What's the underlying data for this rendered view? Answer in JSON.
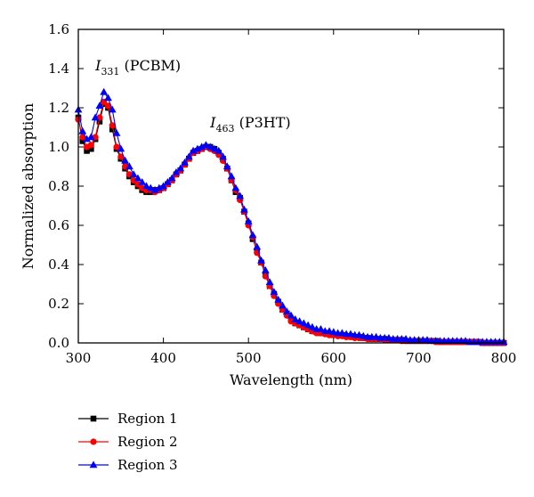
{
  "chart_data": {
    "type": "line",
    "xlabel": "Wavelength (nm)",
    "ylabel": "Normalized absorption",
    "xlim": [
      300,
      800
    ],
    "ylim": [
      0,
      1.6
    ],
    "x_ticks": [
      300,
      400,
      500,
      600,
      700,
      800
    ],
    "y_ticks": [
      0.0,
      0.2,
      0.4,
      0.6,
      0.8,
      1.0,
      1.2,
      1.4,
      1.6
    ],
    "x_tick_labels": [
      "300",
      "400",
      "500",
      "600",
      "700",
      "800"
    ],
    "y_tick_labels": [
      "0.0",
      "0.2",
      "0.4",
      "0.6",
      "0.8",
      "1.0",
      "1.2",
      "1.4",
      "1.6"
    ],
    "grid": false,
    "legend_position": "below-left",
    "annotations": [
      {
        "main": "I",
        "sub": "331",
        "rest": " (PCBM)",
        "x": 320,
        "y": 1.39
      },
      {
        "main": "I",
        "sub": "463",
        "rest": " (P3HT)",
        "x": 455,
        "y": 1.1
      }
    ],
    "x": [
      300,
      305,
      310,
      315,
      320,
      325,
      330,
      335,
      340,
      345,
      350,
      355,
      360,
      365,
      370,
      375,
      380,
      385,
      390,
      395,
      400,
      405,
      410,
      415,
      420,
      425,
      430,
      435,
      440,
      445,
      450,
      455,
      460,
      465,
      470,
      475,
      480,
      485,
      490,
      495,
      500,
      505,
      510,
      515,
      520,
      525,
      530,
      535,
      540,
      545,
      550,
      555,
      560,
      565,
      570,
      575,
      580,
      585,
      590,
      595,
      600,
      605,
      610,
      615,
      620,
      625,
      630,
      635,
      640,
      645,
      650,
      655,
      660,
      665,
      670,
      675,
      680,
      685,
      690,
      695,
      700,
      705,
      710,
      715,
      720,
      725,
      730,
      735,
      740,
      745,
      750,
      755,
      760,
      765,
      770,
      775,
      780,
      785,
      790,
      795,
      800
    ],
    "series": [
      {
        "name": "Region 1",
        "color": "#000000",
        "marker": "square",
        "values": [
          1.15,
          1.03,
          0.98,
          0.99,
          1.04,
          1.13,
          1.22,
          1.2,
          1.09,
          0.99,
          0.94,
          0.89,
          0.85,
          0.82,
          0.8,
          0.78,
          0.77,
          0.77,
          0.78,
          0.78,
          0.79,
          0.81,
          0.83,
          0.86,
          0.88,
          0.91,
          0.94,
          0.97,
          0.98,
          0.99,
          1.0,
          1.0,
          0.99,
          0.97,
          0.94,
          0.89,
          0.83,
          0.77,
          0.74,
          0.67,
          0.61,
          0.53,
          0.47,
          0.41,
          0.35,
          0.29,
          0.25,
          0.21,
          0.17,
          0.15,
          0.12,
          0.1,
          0.09,
          0.08,
          0.07,
          0.06,
          0.055,
          0.05,
          0.05,
          0.045,
          0.04,
          0.04,
          0.04,
          0.035,
          0.035,
          0.03,
          0.03,
          0.025,
          0.025,
          0.02,
          0.02,
          0.02,
          0.02,
          0.015,
          0.015,
          0.015,
          0.015,
          0.01,
          0.01,
          0.01,
          0.01,
          0.01,
          0.01,
          0.01,
          0.01,
          0.005,
          0.005,
          0.005,
          0.005,
          0.005,
          0.005,
          0.005,
          0.005,
          0.005,
          0.005,
          0.0,
          0.0,
          0.0,
          0.0,
          0.0,
          0.0
        ]
      },
      {
        "name": "Region 2",
        "color": "#ff0000",
        "marker": "circle",
        "values": [
          1.14,
          1.05,
          1.0,
          1.01,
          1.05,
          1.15,
          1.23,
          1.21,
          1.11,
          1.0,
          0.95,
          0.9,
          0.86,
          0.83,
          0.81,
          0.79,
          0.78,
          0.78,
          0.77,
          0.78,
          0.79,
          0.81,
          0.83,
          0.86,
          0.88,
          0.91,
          0.94,
          0.97,
          0.98,
          0.99,
          1.0,
          0.99,
          0.98,
          0.96,
          0.93,
          0.89,
          0.83,
          0.78,
          0.73,
          0.67,
          0.6,
          0.54,
          0.46,
          0.41,
          0.34,
          0.29,
          0.24,
          0.2,
          0.17,
          0.14,
          0.11,
          0.1,
          0.09,
          0.08,
          0.07,
          0.06,
          0.05,
          0.05,
          0.045,
          0.04,
          0.04,
          0.035,
          0.035,
          0.03,
          0.03,
          0.025,
          0.025,
          0.025,
          0.02,
          0.02,
          0.02,
          0.02,
          0.015,
          0.015,
          0.015,
          0.015,
          0.01,
          0.01,
          0.01,
          0.01,
          0.01,
          0.01,
          0.01,
          0.01,
          0.005,
          0.005,
          0.005,
          0.005,
          0.005,
          0.005,
          0.005,
          0.005,
          0.005,
          0.005,
          0.005,
          0.0,
          0.0,
          0.0,
          0.0,
          0.0,
          0.0
        ]
      },
      {
        "name": "Region 3",
        "color": "#0000ff",
        "marker": "triangle",
        "values": [
          1.19,
          1.08,
          1.04,
          1.05,
          1.15,
          1.21,
          1.28,
          1.25,
          1.19,
          1.07,
          0.99,
          0.93,
          0.9,
          0.86,
          0.84,
          0.82,
          0.8,
          0.79,
          0.78,
          0.79,
          0.8,
          0.82,
          0.84,
          0.87,
          0.89,
          0.92,
          0.95,
          0.98,
          0.99,
          1.0,
          1.01,
          1.0,
          0.99,
          0.98,
          0.95,
          0.9,
          0.85,
          0.79,
          0.75,
          0.68,
          0.62,
          0.55,
          0.49,
          0.42,
          0.37,
          0.31,
          0.26,
          0.22,
          0.19,
          0.16,
          0.14,
          0.12,
          0.11,
          0.1,
          0.09,
          0.08,
          0.07,
          0.07,
          0.06,
          0.06,
          0.055,
          0.05,
          0.05,
          0.045,
          0.045,
          0.04,
          0.04,
          0.035,
          0.03,
          0.03,
          0.03,
          0.025,
          0.025,
          0.025,
          0.02,
          0.02,
          0.02,
          0.02,
          0.015,
          0.015,
          0.015,
          0.015,
          0.015,
          0.01,
          0.01,
          0.01,
          0.01,
          0.01,
          0.01,
          0.01,
          0.01,
          0.01,
          0.005,
          0.005,
          0.005,
          0.005,
          0.005,
          0.005,
          0.005,
          0.005,
          0.005
        ]
      }
    ]
  }
}
